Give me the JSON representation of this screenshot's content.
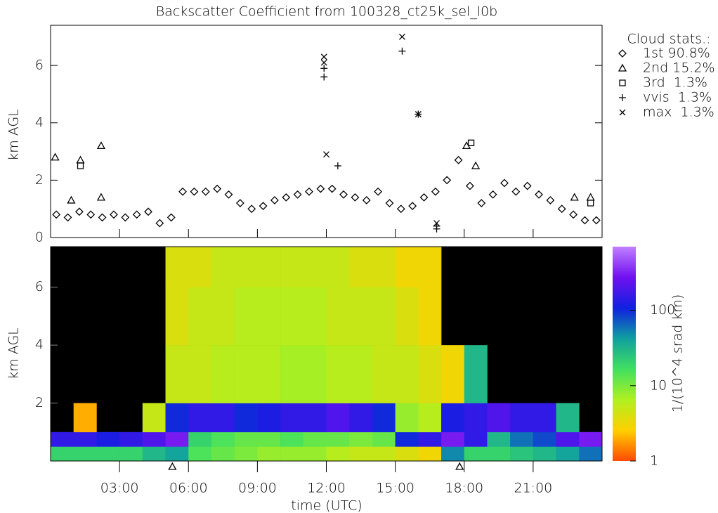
{
  "chart_data": [
    {
      "type": "scatter",
      "title": "Backscatter Coefficient from 100328_ct25k_sel_l0b",
      "ylabel": "km AGL",
      "legend_title": "Cloud stats.:",
      "xlim": [
        0,
        24
      ],
      "ylim": [
        0,
        7.4
      ],
      "yticks": [
        0,
        2,
        4,
        6
      ],
      "series": [
        {
          "name": "1st 90.8%",
          "marker": "diamond",
          "color": "#000000",
          "x": [
            0.25,
            0.75,
            1.25,
            1.75,
            2.25,
            2.75,
            3.25,
            3.75,
            4.25,
            4.75,
            5.25,
            5.75,
            6.25,
            6.75,
            7.25,
            7.75,
            8.25,
            8.75,
            9.25,
            9.75,
            10.25,
            10.75,
            11.25,
            11.75,
            12.25,
            12.75,
            13.25,
            13.75,
            14.25,
            14.75,
            15.25,
            15.75,
            16.25,
            16.75,
            17.25,
            17.75,
            18.25,
            18.75,
            19.25,
            19.75,
            20.25,
            20.75,
            21.25,
            21.75,
            22.25,
            22.75,
            23.25,
            23.75
          ],
          "values": [
            0.8,
            0.7,
            0.9,
            0.8,
            0.7,
            0.8,
            0.7,
            0.8,
            0.9,
            0.5,
            0.7,
            1.6,
            1.6,
            1.6,
            1.7,
            1.5,
            1.2,
            1.0,
            1.1,
            1.3,
            1.4,
            1.5,
            1.6,
            1.7,
            1.7,
            1.5,
            1.4,
            1.3,
            1.6,
            1.2,
            1.0,
            1.1,
            1.4,
            1.6,
            2.0,
            2.7,
            1.8,
            1.2,
            1.5,
            1.9,
            1.6,
            1.8,
            1.5,
            1.3,
            1.0,
            0.8,
            0.6,
            0.6
          ]
        },
        {
          "name": "2nd 15.2%",
          "marker": "triangle",
          "color": "#000000",
          "x": [
            0.2,
            0.9,
            1.3,
            2.2,
            2.2,
            18.1,
            18.5,
            22.8,
            23.5
          ],
          "values": [
            2.8,
            1.3,
            2.7,
            3.2,
            1.4,
            3.2,
            2.5,
            1.4,
            1.4
          ]
        },
        {
          "name": "3rd  1.3%",
          "marker": "square",
          "color": "#000000",
          "x": [
            1.3,
            18.3,
            23.5
          ],
          "values": [
            2.5,
            3.3,
            1.2
          ]
        },
        {
          "name": "vvis  1.3%",
          "marker": "plus",
          "color": "#000000",
          "x": [
            11.9,
            11.9,
            15.3,
            16.0,
            16.8,
            16.8,
            12.5
          ],
          "values": [
            5.6,
            5.9,
            6.5,
            4.3,
            0.4,
            0.3,
            2.5
          ]
        },
        {
          "name": "max  1.3%",
          "marker": "cross",
          "color": "#000000",
          "x": [
            11.9,
            11.9,
            15.3,
            16.0,
            12.0,
            16.8
          ],
          "values": [
            6.3,
            6.1,
            7.0,
            4.3,
            2.9,
            0.5
          ]
        }
      ]
    },
    {
      "type": "heatmap",
      "ylabel": "km AGL",
      "xlabel": "time (UTC)",
      "colorbar_label": "1/(10^4 srad km)",
      "xlim": [
        0,
        24
      ],
      "ylim": [
        0,
        7.4
      ],
      "yticks": [
        2,
        4,
        6
      ],
      "xticks": [
        {
          "value": 3,
          "label": "03:00"
        },
        {
          "value": 6,
          "label": "06:00"
        },
        {
          "value": 9,
          "label": "09:00"
        },
        {
          "value": 12,
          "label": "12:00"
        },
        {
          "value": 15,
          "label": "15:00"
        },
        {
          "value": 18,
          "label": "18:00"
        },
        {
          "value": 21,
          "label": "21:00"
        }
      ],
      "clim": [
        1,
        700
      ],
      "cticks": [
        1,
        10,
        100
      ],
      "log_color": true,
      "colormap": [
        "#ff4a00",
        "#ffd000",
        "#b0f020",
        "#40e060",
        "#10a0a0",
        "#1020e0",
        "#7010f0",
        "#c080ff"
      ],
      "background": "#000000",
      "x_edges": [
        0,
        1,
        2,
        3,
        4,
        5,
        6,
        7,
        8,
        9,
        10,
        11,
        12,
        13,
        14,
        15,
        16,
        17,
        18,
        19,
        20,
        21,
        22,
        23,
        24
      ],
      "y_edges": [
        0,
        0.5,
        1,
        2,
        4,
        6,
        7.4
      ],
      "z": [
        [
          20,
          20,
          20,
          20,
          30,
          40,
          15,
          12,
          10,
          8,
          8,
          8,
          6,
          5,
          5,
          4,
          3,
          50,
          20,
          20,
          25,
          30,
          40,
          60
        ],
        [
          150,
          150,
          120,
          150,
          200,
          300,
          20,
          15,
          12,
          12,
          15,
          12,
          12,
          10,
          12,
          100,
          150,
          300,
          150,
          30,
          60,
          80,
          200,
          300
        ],
        [
          null,
          2,
          null,
          null,
          5,
          100,
          150,
          150,
          100,
          120,
          150,
          150,
          200,
          150,
          100,
          8,
          6,
          120,
          150,
          200,
          150,
          150,
          30,
          null
        ],
        [
          null,
          null,
          null,
          null,
          null,
          5,
          5,
          6,
          6,
          6,
          7,
          7,
          6,
          6,
          5,
          5,
          4,
          3,
          30,
          null,
          null,
          null,
          null,
          null
        ],
        [
          null,
          null,
          null,
          null,
          null,
          4,
          5,
          5,
          6,
          6,
          6,
          6,
          5,
          5,
          5,
          4,
          3,
          null,
          null,
          null,
          null,
          null,
          null,
          null
        ],
        [
          null,
          null,
          null,
          null,
          null,
          4,
          4,
          5,
          5,
          5,
          5,
          5,
          5,
          4,
          4,
          3,
          3,
          null,
          null,
          null,
          null,
          null,
          null,
          null
        ]
      ],
      "bottom_markers": [
        5.3,
        17.8
      ]
    }
  ]
}
